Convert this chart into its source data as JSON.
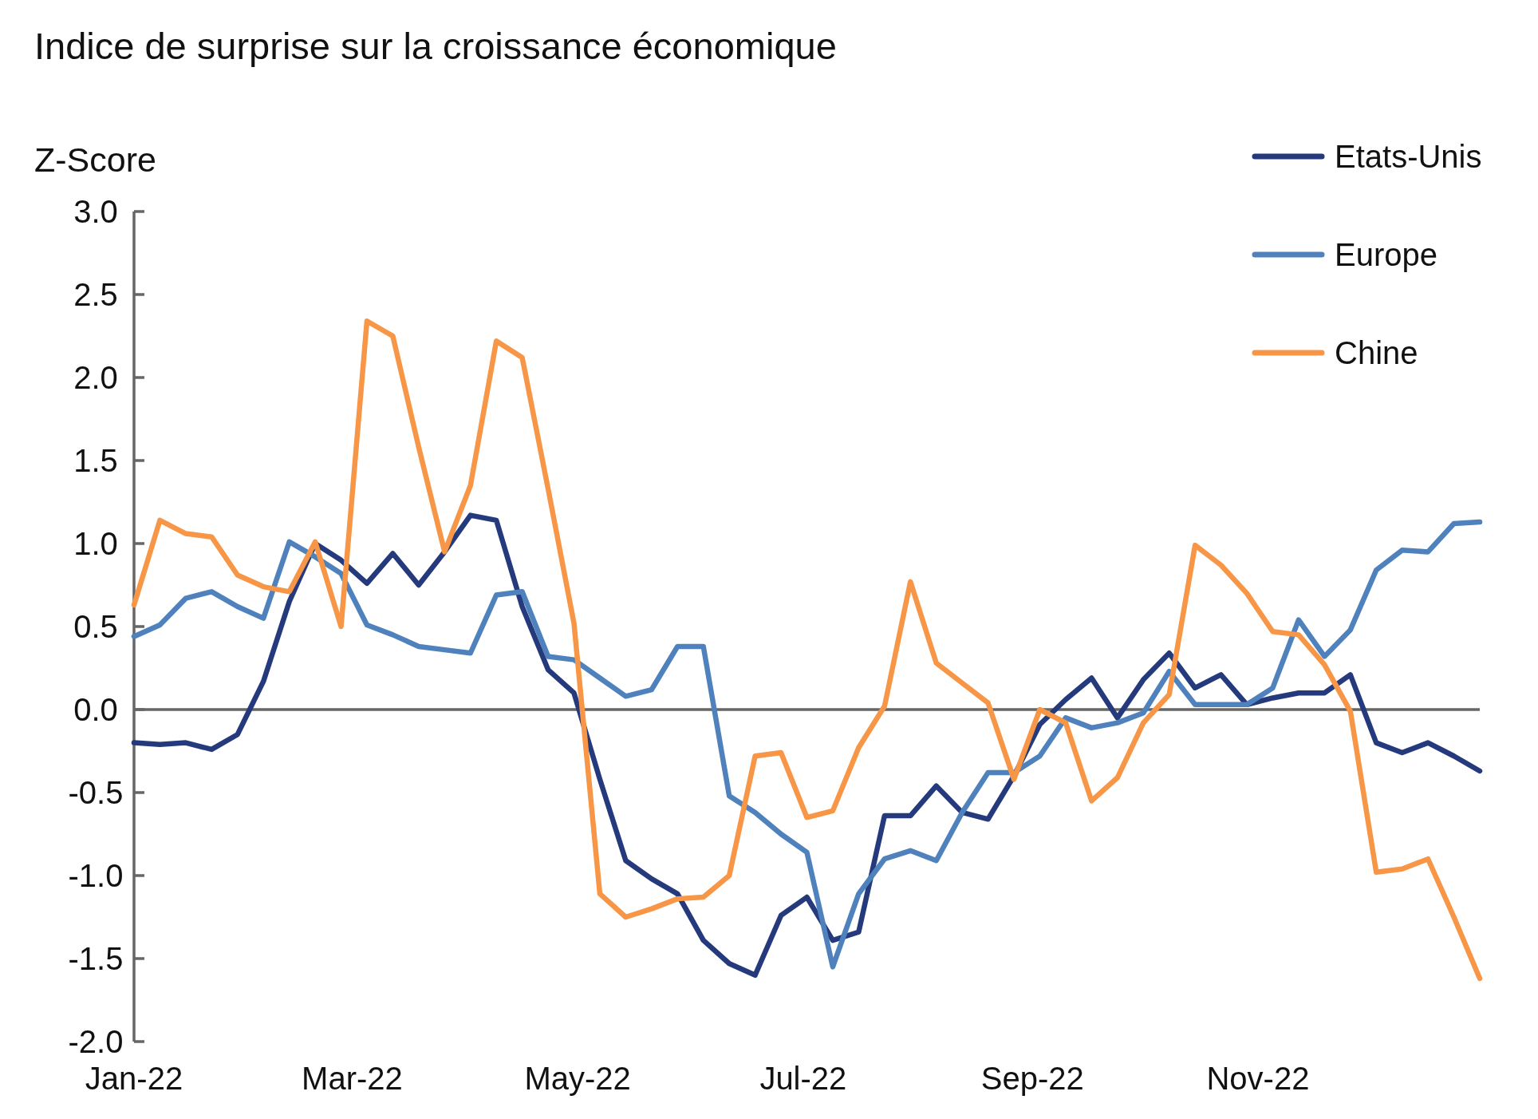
{
  "chart_data": {
    "type": "line",
    "title": "Indice de surprise sur la croissance économique",
    "ylabel": "Z-Score",
    "x": [
      "2022-01-01",
      "2022-01-08",
      "2022-01-15",
      "2022-01-22",
      "2022-01-29",
      "2022-02-05",
      "2022-02-12",
      "2022-02-19",
      "2022-02-26",
      "2022-03-05",
      "2022-03-12",
      "2022-03-19",
      "2022-03-26",
      "2022-04-02",
      "2022-04-09",
      "2022-04-16",
      "2022-04-23",
      "2022-04-30",
      "2022-05-07",
      "2022-05-14",
      "2022-05-21",
      "2022-05-28",
      "2022-06-04",
      "2022-06-11",
      "2022-06-18",
      "2022-06-25",
      "2022-07-02",
      "2022-07-09",
      "2022-07-16",
      "2022-07-23",
      "2022-07-30",
      "2022-08-06",
      "2022-08-13",
      "2022-08-20",
      "2022-08-27",
      "2022-09-03",
      "2022-09-10",
      "2022-09-17",
      "2022-09-24",
      "2022-10-01",
      "2022-10-08",
      "2022-10-15",
      "2022-10-22",
      "2022-10-29",
      "2022-11-05",
      "2022-11-12",
      "2022-11-19",
      "2022-11-26",
      "2022-12-03",
      "2022-12-10",
      "2022-12-17",
      "2022-12-24",
      "2022-12-31"
    ],
    "series": [
      {
        "name": "Etats-Unis",
        "color": "#253a7d",
        "values": [
          -0.2,
          -0.21,
          -0.2,
          -0.24,
          -0.15,
          0.17,
          0.65,
          1.0,
          0.9,
          0.76,
          0.94,
          0.75,
          0.95,
          1.17,
          1.14,
          0.62,
          0.24,
          0.1,
          -0.42,
          -0.91,
          -1.02,
          -1.11,
          -1.39,
          -1.53,
          -1.6,
          -1.24,
          -1.13,
          -1.39,
          -1.34,
          -0.64,
          -0.64,
          -0.46,
          -0.62,
          -0.66,
          -0.4,
          -0.09,
          0.06,
          0.19,
          -0.05,
          0.18,
          0.34,
          0.13,
          0.21,
          0.03,
          0.07,
          0.1,
          0.1,
          0.21,
          -0.2,
          -0.26,
          -0.2,
          -0.28,
          -0.37
        ]
      },
      {
        "name": "Europe",
        "color": "#4f81bd",
        "values": [
          0.44,
          0.51,
          0.67,
          0.71,
          0.62,
          0.55,
          1.01,
          0.92,
          0.82,
          0.51,
          0.45,
          0.38,
          0.36,
          0.34,
          0.69,
          0.71,
          0.32,
          0.3,
          0.19,
          0.08,
          0.12,
          0.38,
          0.38,
          -0.52,
          -0.62,
          -0.75,
          -0.86,
          -1.55,
          -1.11,
          -0.9,
          -0.85,
          -0.91,
          -0.62,
          -0.38,
          -0.38,
          -0.28,
          -0.05,
          -0.11,
          -0.08,
          -0.02,
          0.23,
          0.03,
          0.03,
          0.03,
          0.13,
          0.54,
          0.32,
          0.48,
          0.84,
          0.96,
          0.95,
          1.12,
          1.13
        ]
      },
      {
        "name": "Chine",
        "color": "#f79646",
        "values": [
          0.63,
          1.14,
          1.06,
          1.04,
          0.81,
          0.74,
          0.71,
          1.01,
          0.5,
          2.34,
          2.25,
          1.58,
          0.95,
          1.35,
          2.22,
          2.12,
          1.33,
          0.52,
          -1.11,
          -1.25,
          -1.2,
          -1.14,
          -1.13,
          -1.0,
          -0.28,
          -0.26,
          -0.65,
          -0.61,
          -0.23,
          0.02,
          0.77,
          0.28,
          0.16,
          0.04,
          -0.42,
          0.0,
          -0.08,
          -0.55,
          -0.41,
          -0.08,
          0.09,
          0.99,
          0.87,
          0.7,
          0.47,
          0.45,
          0.27,
          -0.01,
          -0.98,
          -0.96,
          -0.9,
          -1.25,
          -1.62
        ]
      }
    ],
    "xlim": [
      "2022-01-01",
      "2022-12-31"
    ],
    "xticks": [
      {
        "value": "2022-01-01",
        "label": "Jan-22"
      },
      {
        "value": "2022-03-01",
        "label": "Mar-22"
      },
      {
        "value": "2022-05-01",
        "label": "May-22"
      },
      {
        "value": "2022-07-01",
        "label": "Jul-22"
      },
      {
        "value": "2022-09-01",
        "label": "Sep-22"
      },
      {
        "value": "2022-11-01",
        "label": "Nov-22"
      }
    ],
    "ylim": [
      -2,
      3
    ],
    "yticks": [
      {
        "value": -2,
        "label": "-2.0"
      },
      {
        "value": -1.5,
        "label": "-1.5"
      },
      {
        "value": -1,
        "label": "-1.0"
      },
      {
        "value": -0.5,
        "label": "-0.5"
      },
      {
        "value": 0,
        "label": "0.0"
      },
      {
        "value": 0.5,
        "label": "0.5"
      },
      {
        "value": 1,
        "label": "1.0"
      },
      {
        "value": 1.5,
        "label": "1.5"
      },
      {
        "value": 2,
        "label": "2.0"
      },
      {
        "value": 2.5,
        "label": "2.5"
      },
      {
        "value": 3,
        "label": "3.0"
      }
    ],
    "legend": "top right",
    "marker": "none",
    "line_style": "solid"
  }
}
